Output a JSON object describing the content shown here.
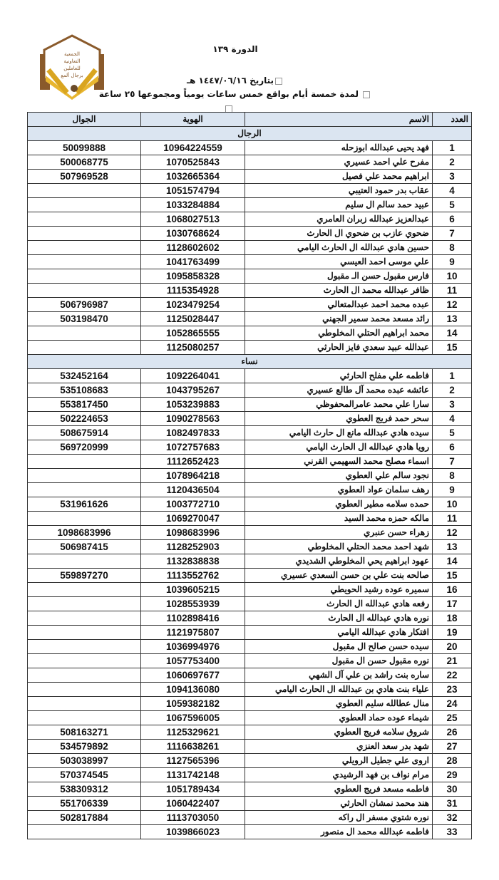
{
  "header": {
    "logo_text": "الجمعية التعاونية للعاملين برجال ألمع",
    "course_title": "الدورة ١٣٩",
    "date_line": "بتاريخ ١٤٤٧/٠٦/١٦ هـ",
    "duration_line": "لمدة خمسة أيام بواقع خمس ساعات يومياً ومجموعها ٢٥ ساعة"
  },
  "table": {
    "columns": {
      "number": "العدد",
      "name": "الاسم",
      "id": "الهوية",
      "phone": "الجوال"
    },
    "sections": [
      {
        "title": "الرجال",
        "rows": [
          [
            "1",
            "فهد يحيى عبدالله ابوزحله",
            "10964224559",
            "50099888"
          ],
          [
            "2",
            "مفرح علي احمد عسيري",
            "1070525843",
            "500068775"
          ],
          [
            "3",
            "ابراهيم محمد علي فصيل",
            "1032665364",
            "507969528"
          ],
          [
            "4",
            "عقاب بدر حمود العتيبي",
            "1051574794",
            ""
          ],
          [
            "5",
            "عبيد حمد سالم ال سليم",
            "1033284884",
            ""
          ],
          [
            "6",
            "عبدالعزيز عبدالله زبران العامري",
            "1068027513",
            ""
          ],
          [
            "7",
            "ضحوي عازب بن ضحوي ال الحارث",
            "1030768624",
            ""
          ],
          [
            "8",
            "حسين هادي عبدالله ال الحارث اليامي",
            "1128602602",
            ""
          ],
          [
            "9",
            "علي موسى احمد العيسي",
            "1041763499",
            ""
          ],
          [
            "10",
            "فارس مقبول حسن الـ مقبول",
            "1095858328",
            ""
          ],
          [
            "11",
            "ظافر عبدالله محمد ال الحارث",
            "1115354928",
            ""
          ],
          [
            "12",
            "عبده محمد احمد عبدالمتعالي",
            "1023479254",
            "506796987"
          ],
          [
            "13",
            "رائد مسعد محمد سمير الجهني",
            "1125028447",
            "503198470"
          ],
          [
            "14",
            "محمد ابراهيم الحتلي المخلوطي",
            "1052865555",
            ""
          ],
          [
            "15",
            "عبدالله عبيد سعدي فايز الحارثي",
            "1125080257",
            ""
          ]
        ]
      },
      {
        "title": "نساء",
        "rows": [
          [
            "1",
            "فاطمه علي مفلح الحارثي",
            "1092264041",
            "532452164"
          ],
          [
            "2",
            "عائشه عبده محمد آل طالع عسيري",
            "1043795267",
            "535108683"
          ],
          [
            "3",
            "سارا علي محمد عامرالمحفوظي",
            "1053239883",
            "553817450"
          ],
          [
            "4",
            "سحر حمد فريج العطوي",
            "1090278563",
            "502224653"
          ],
          [
            "5",
            "سيده هادي عبدالله مانع ال حارث اليامي",
            "1082497833",
            "508675914"
          ],
          [
            "6",
            "رويا هادي عبدالله ال الحارث اليامي",
            "1072757683",
            "569720999"
          ],
          [
            "7",
            "اسماء مصلح محمد السهيمي القرني",
            "1112652423",
            ""
          ],
          [
            "8",
            "نجود سالم علي العطوي",
            "1078964218",
            ""
          ],
          [
            "9",
            "رهف سلمان عواد العطوي",
            "1120436504",
            ""
          ],
          [
            "10",
            "حمده سلامه مطير العطوي",
            "1003772710",
            "531961626"
          ],
          [
            "11",
            "مالكه حمزه محمد السيد",
            "1069270047",
            ""
          ],
          [
            "12",
            "زهراء حسن عنبري",
            "1098683996",
            "1098683996"
          ],
          [
            "13",
            "شهد احمد محمد الحتلي المخلوطي",
            "1128252903",
            "506987415"
          ],
          [
            "14",
            "عهود ابراهيم يحي المخلوطي الشديدي",
            "1132838838",
            ""
          ],
          [
            "15",
            "صالحه بنت علي بن حسن السعدي عسيري",
            "1113552762",
            "559897270"
          ],
          [
            "16",
            "سميره عوده رشيد الحويطي",
            "1039605215",
            ""
          ],
          [
            "17",
            "رفعه هادي عبدالله ال الحارث",
            "1028553939",
            ""
          ],
          [
            "18",
            "نوره هادي عبدالله ال الحارث",
            "1102898416",
            ""
          ],
          [
            "19",
            "افتكار هادي عبدالله اليامي",
            "1121975807",
            ""
          ],
          [
            "20",
            "سيده حسن صالح ال مقبول",
            "1036994976",
            ""
          ],
          [
            "21",
            "نوره مقبول حسن ال مقبول",
            "1057753400",
            ""
          ],
          [
            "22",
            "ساره بنت راشد بن علي آل الشهي",
            "1060697677",
            ""
          ],
          [
            "23",
            "علياء بنت هادي بن عبدالله ال الحارث اليامي",
            "1094136080",
            ""
          ],
          [
            "24",
            "منال عطالله سليم العطوي",
            "1059382182",
            ""
          ],
          [
            "25",
            "شيماء عوده حماد العطوي",
            "1067596005",
            ""
          ],
          [
            "26",
            "شروق سلامه فريج العطوي",
            "1125329621",
            "508163271"
          ],
          [
            "27",
            "شهد بدر سعد العنزي",
            "1116638261",
            "534579892"
          ],
          [
            "28",
            "اروى علي جطيل الرويلي",
            "1127565396",
            "503038997"
          ],
          [
            "29",
            "مرام نواف بن فهد الرشيدي",
            "1131742148",
            "570374545"
          ],
          [
            "30",
            "فاطمه مسعد فريج العطوي",
            "1051789434",
            "538309312"
          ],
          [
            "31",
            "هند محمد نمشان الحارثي",
            "1060422407",
            "551706339"
          ],
          [
            "32",
            "نوره شتوي مسفر ال راكه",
            "1113703050",
            "502817884"
          ],
          [
            "33",
            "فاطمه عبدالله محمد ال منصور",
            "1039866023",
            ""
          ]
        ]
      }
    ]
  }
}
